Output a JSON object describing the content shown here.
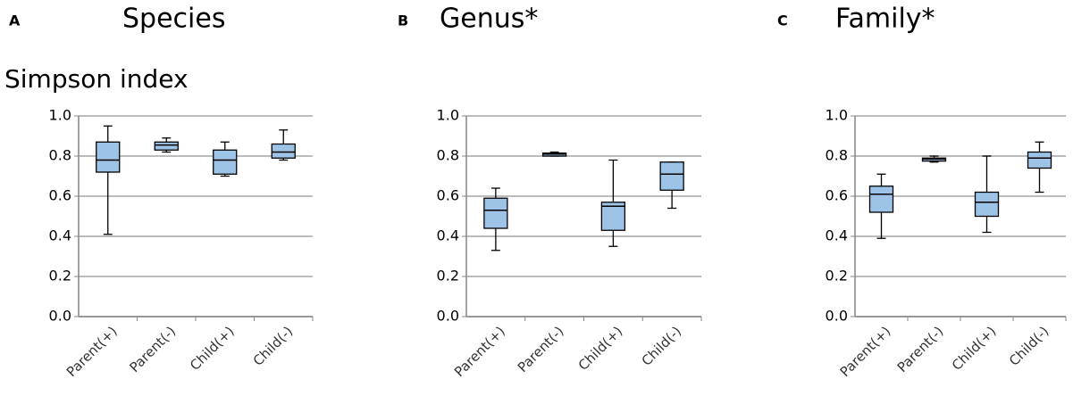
{
  "chart_data": [
    {
      "type": "box",
      "label": "A",
      "title": "Species",
      "y_label": "Simpson index",
      "categories": [
        "Parent(+)",
        "Parent(-)",
        "Child(+)",
        "Child(-)"
      ],
      "color": "#9dc3e6",
      "grid": true,
      "ylim": [
        0,
        1
      ],
      "yticks": [
        {
          "value": 0,
          "label": "0.0"
        },
        0.2,
        0.4,
        0.6,
        0.8,
        {
          "value": 1,
          "label": "1.0"
        }
      ],
      "min": [
        0.41,
        0.82,
        0.7,
        0.78
      ],
      "q1": [
        0.72,
        0.83,
        0.71,
        0.79
      ],
      "median": [
        0.78,
        0.855,
        0.78,
        0.82
      ],
      "q3": [
        0.87,
        0.87,
        0.83,
        0.86
      ],
      "max": [
        0.95,
        0.89,
        0.87,
        0.93
      ]
    },
    {
      "type": "box",
      "label": "B",
      "title": "Genus*",
      "categories": [
        "Parent(+)",
        "Parent(-)",
        "Child(+)",
        "Child(-)"
      ],
      "color": "#9dc3e6",
      "grid": true,
      "ylim": [
        0,
        1
      ],
      "yticks": [
        {
          "value": 0,
          "label": "0.0"
        },
        0.2,
        0.4,
        0.6,
        0.8,
        {
          "value": 1,
          "label": "1.0"
        }
      ],
      "min": [
        0.33,
        0.8,
        0.35,
        0.54
      ],
      "q1": [
        0.44,
        0.8,
        0.43,
        0.63
      ],
      "median": [
        0.53,
        0.81,
        0.55,
        0.71
      ],
      "q3": [
        0.59,
        0.815,
        0.57,
        0.77
      ],
      "max": [
        0.64,
        0.82,
        0.78,
        0.77
      ]
    },
    {
      "type": "box",
      "label": "C",
      "title": "Family*",
      "categories": [
        "Parent(+)",
        "Parent(-)",
        "Child(+)",
        "Child(-)"
      ],
      "color": "#9dc3e6",
      "grid": true,
      "ylim": [
        0,
        1
      ],
      "yticks": [
        {
          "value": 0,
          "label": "0.0"
        },
        0.2,
        0.4,
        0.6,
        0.8,
        {
          "value": 1,
          "label": "1.0"
        }
      ],
      "min": [
        0.39,
        0.77,
        0.42,
        0.62
      ],
      "q1": [
        0.52,
        0.775,
        0.5,
        0.74
      ],
      "median": [
        0.61,
        0.785,
        0.57,
        0.79
      ],
      "q3": [
        0.65,
        0.79,
        0.62,
        0.82
      ],
      "max": [
        0.71,
        0.8,
        0.8,
        0.87
      ]
    }
  ]
}
